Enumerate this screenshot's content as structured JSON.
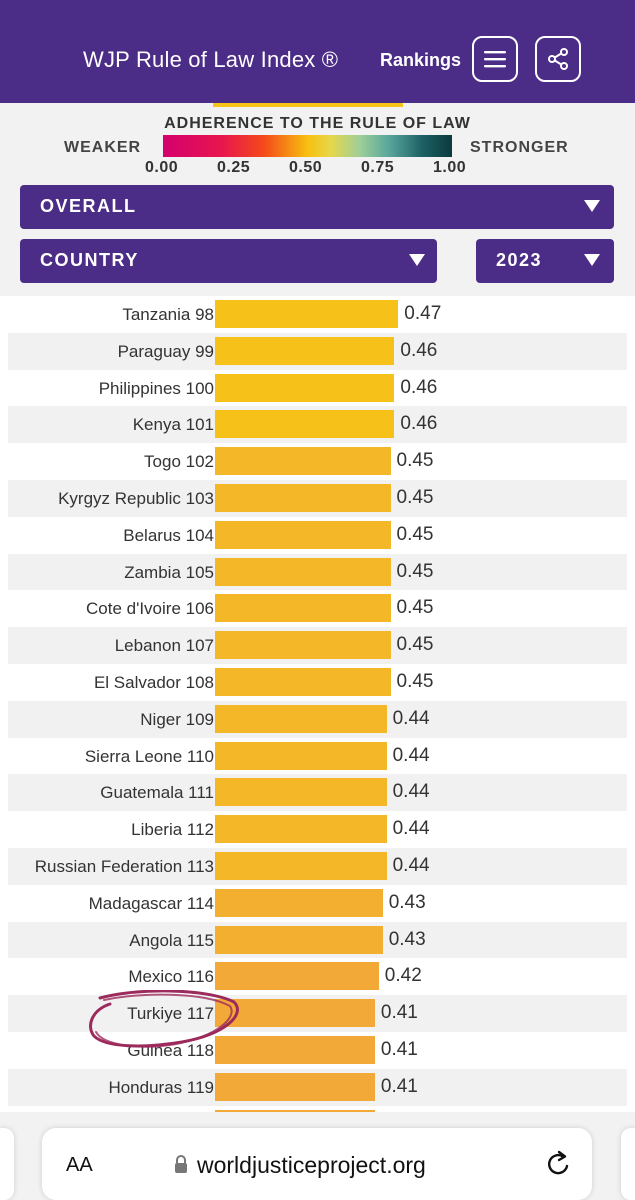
{
  "header": {
    "title": "WJP Rule of Law Index ®",
    "rankings": "Rankings",
    "menu_icon": "hamburger-menu-icon",
    "share_icon": "share-icon",
    "color": "#4b2c86"
  },
  "legend": {
    "heading": "ADHERENCE TO THE RULE OF LAW",
    "weaker": "WEAKER",
    "stronger": "STRONGER",
    "ticks": [
      "0.00",
      "0.25",
      "0.50",
      "0.75",
      "1.00"
    ]
  },
  "filters": {
    "factor": "OVERALL",
    "group": "COUNTRY",
    "year": "2023"
  },
  "chart_data": {
    "type": "bar",
    "orientation": "horizontal",
    "xlim": [
      0,
      1
    ],
    "categories": [
      "Tanzania 98",
      "Paraguay 99",
      "Philippines 100",
      "Kenya 101",
      "Togo 102",
      "Kyrgyz Republic 103",
      "Belarus 104",
      "Zambia 105",
      "Cote d'Ivoire 106",
      "Lebanon 107",
      "El Salvador 108",
      "Niger 109",
      "Sierra Leone 110",
      "Guatemala 111",
      "Liberia 112",
      "Russian Federation 113",
      "Madagascar 114",
      "Angola 115",
      "Mexico 116",
      "Turkiye 117",
      "Guinea 118",
      "Honduras 119"
    ],
    "values": [
      0.47,
      0.46,
      0.46,
      0.46,
      0.45,
      0.45,
      0.45,
      0.45,
      0.45,
      0.45,
      0.45,
      0.44,
      0.44,
      0.44,
      0.44,
      0.44,
      0.43,
      0.43,
      0.42,
      0.41,
      0.41,
      0.41
    ],
    "value_labels": [
      "0.47",
      "0.46",
      "0.46",
      "0.46",
      "0.45",
      "0.45",
      "0.45",
      "0.45",
      "0.45",
      "0.45",
      "0.45",
      "0.44",
      "0.44",
      "0.44",
      "0.44",
      "0.44",
      "0.43",
      "0.43",
      "0.42",
      "0.41",
      "0.41",
      "0.41"
    ],
    "highlighted": "Turkiye 117",
    "highlight_color": "#9c2a5c"
  },
  "browser": {
    "text_size": "AA",
    "url": "worldjusticeproject.org",
    "lock_icon": "lock-icon",
    "reload_icon": "reload-icon"
  }
}
